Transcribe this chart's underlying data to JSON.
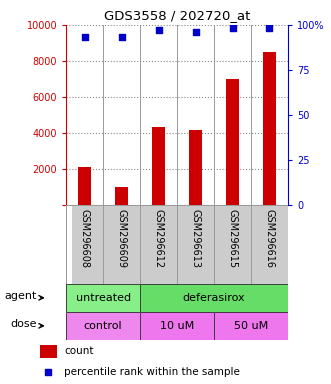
{
  "title": "GDS3558 / 202720_at",
  "samples": [
    "GSM296608",
    "GSM296609",
    "GSM296612",
    "GSM296613",
    "GSM296615",
    "GSM296616"
  ],
  "counts": [
    2100,
    1000,
    4300,
    4150,
    7000,
    8500
  ],
  "percentiles": [
    93,
    93,
    97,
    96,
    98,
    98
  ],
  "ylim_left": [
    0,
    10000
  ],
  "ylim_right": [
    0,
    100
  ],
  "yticks_left": [
    2000,
    4000,
    6000,
    8000,
    10000
  ],
  "yticks_right": [
    0,
    25,
    50,
    75,
    100
  ],
  "bar_color": "#cc0000",
  "dot_color": "#0000cc",
  "agent_color_untreated": "#88ee88",
  "agent_color_deferasirox": "#66dd66",
  "dose_color_control": "#ee88ee",
  "dose_color_10uM": "#ee77ee",
  "dose_color_50uM": "#ee77ee",
  "grid_color": "#888888",
  "bar_width": 0.35,
  "dot_size": 25,
  "left_label_color": "#cc0000",
  "right_label_color": "#0000cc",
  "tick_label_fontsize": 7,
  "right_tick_labels": [
    "0",
    "25",
    "50",
    "75",
    "100%"
  ]
}
